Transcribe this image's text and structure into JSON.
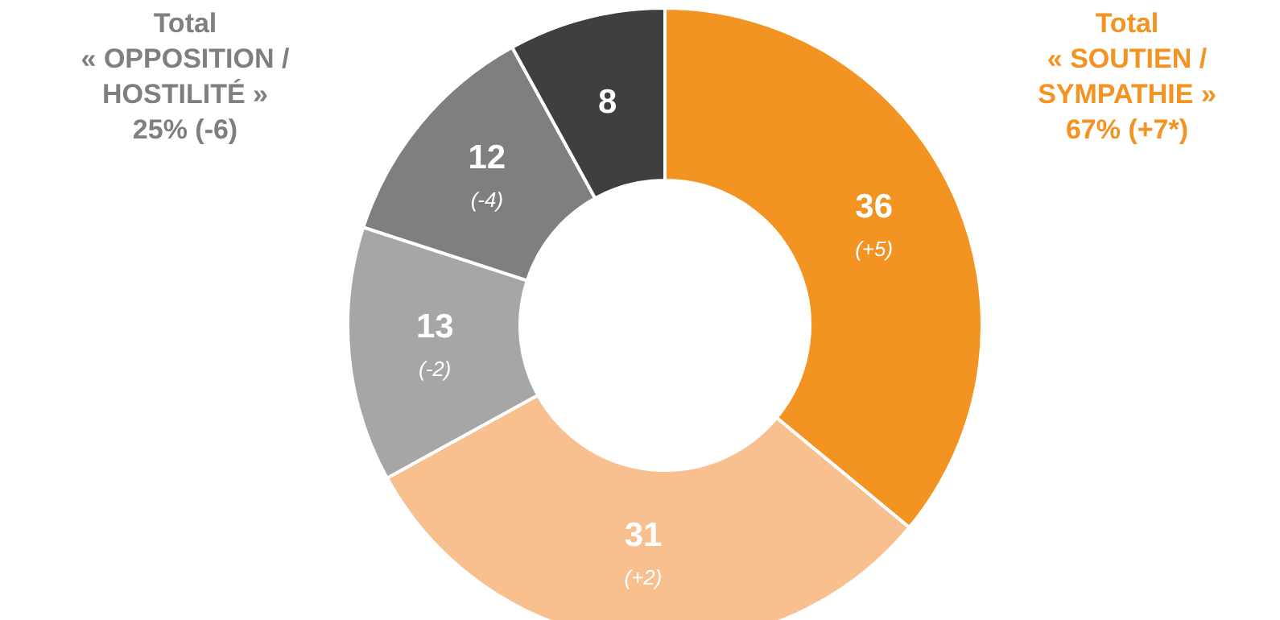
{
  "chart_data": {
    "type": "donut",
    "categories": [
      null,
      null,
      null,
      null,
      null
    ],
    "values": [
      36,
      31,
      13,
      12,
      8
    ],
    "colors": [
      "#f39321",
      "#f8c08e",
      "#a6a6a6",
      "#7f7f7f",
      "#3f3f3f"
    ],
    "value_labels": [
      "36\n(+5)",
      "31\n(+2)",
      "13\n(-2)",
      "12\n(-4)",
      "8"
    ],
    "annotations": [
      "Total\n« SOUTIEN /\nSYMPATHIE »\n67% (+7*)",
      "Total\n« OPPOSITION /\nHOSTILITÉ »\n25% (-6)"
    ],
    "legend": false
  }
}
